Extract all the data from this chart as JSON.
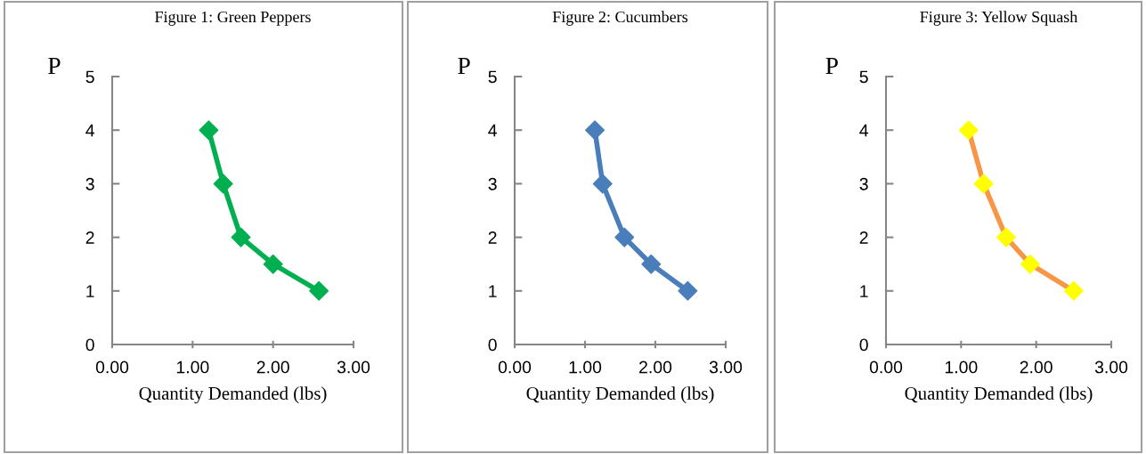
{
  "chart_data": [
    {
      "type": "line",
      "title": "Figure 1: Green Peppers",
      "xlabel": "Quantity Demanded (lbs)",
      "ylabel": "P",
      "x": [
        1.2,
        1.38,
        1.6,
        2.0,
        2.57
      ],
      "marker": "diamond",
      "line_style": "solid",
      "xlim": [
        0,
        3
      ],
      "ylim": [
        0,
        5
      ],
      "xticks": [
        {
          "value": 0,
          "label": "0.00"
        },
        {
          "value": 1,
          "label": "1.00"
        },
        {
          "value": 2,
          "label": "2.00"
        },
        {
          "value": 3,
          "label": "3.00"
        }
      ],
      "yticks": [
        0,
        1,
        2,
        3,
        4,
        5
      ],
      "series": [
        {
          "color": "#00b050",
          "colors": [
            "#00b050",
            "#00b050",
            "#00b050",
            "#00b050",
            "#00b050"
          ],
          "values": [
            4,
            3,
            2,
            1.5,
            1
          ]
        }
      ]
    },
    {
      "type": "line",
      "title": "Figure 2: Cucumbers",
      "xlabel": "Quantity Demanded (lbs)",
      "ylabel": "P",
      "x": [
        1.14,
        1.25,
        1.56,
        1.94,
        2.46
      ],
      "marker": "diamond",
      "line_style": "solid",
      "xlim": [
        0,
        3
      ],
      "ylim": [
        0,
        5
      ],
      "xticks": [
        {
          "value": 0,
          "label": "0.00"
        },
        {
          "value": 1,
          "label": "1.00"
        },
        {
          "value": 2,
          "label": "2.00"
        },
        {
          "value": 3,
          "label": "3.00"
        }
      ],
      "yticks": [
        0,
        1,
        2,
        3,
        4,
        5
      ],
      "series": [
        {
          "color": "#4a7ebb",
          "colors": [
            "#4a7ebb",
            "#4a7ebb",
            "#4a7ebb",
            "#4a7ebb",
            "#4a7ebb"
          ],
          "values": [
            4,
            3,
            2,
            1.5,
            1
          ]
        }
      ]
    },
    {
      "type": "line",
      "title": "Figure 3: Yellow Squash",
      "xlabel": "Quantity Demanded (lbs)",
      "ylabel": "P",
      "x": [
        1.1,
        1.3,
        1.6,
        1.92,
        2.5
      ],
      "marker": "diamond",
      "line_style": "solid",
      "xlim": [
        0,
        3
      ],
      "ylim": [
        0,
        5
      ],
      "xticks": [
        {
          "value": 0,
          "label": "0.00"
        },
        {
          "value": 1,
          "label": "1.00"
        },
        {
          "value": 2,
          "label": "2.00"
        },
        {
          "value": 3,
          "label": "3.00"
        }
      ],
      "yticks": [
        0,
        1,
        2,
        3,
        4,
        5
      ],
      "series": [
        {
          "color": "#f79646",
          "colors": [
            "#ffff00",
            "#ffff00",
            "#ffff00",
            "#ffff00",
            "#ffff00"
          ],
          "values": [
            4,
            3,
            2,
            1.5,
            1
          ]
        }
      ]
    }
  ]
}
